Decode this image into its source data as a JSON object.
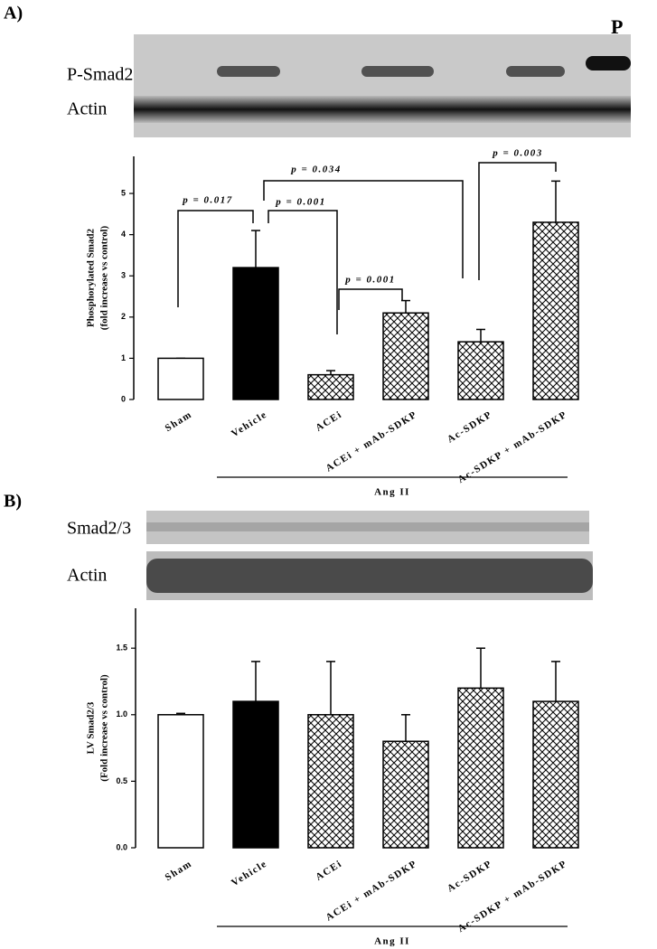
{
  "chart_data": [
    {
      "type": "bar",
      "panel": "A)",
      "blot_labels": [
        "P-Smad2",
        "Actin"
      ],
      "corner_label": "P",
      "ylabel": [
        "Phosphorylated Smad2",
        "(fold increase vs control)"
      ],
      "categories": [
        "Sham",
        "Vehicle",
        "ACEi",
        "ACEi + mAb-SDKP",
        "Ac-SDKP",
        "Ac-SDKP + mAb-SDKP"
      ],
      "values": [
        1,
        3.2,
        0.6,
        2.1,
        1.4,
        4.3
      ],
      "errors": [
        0,
        0.9,
        0.1,
        0.3,
        0.3,
        1.0
      ],
      "colors": [
        "#ffffff",
        "#000000",
        "hatch",
        "hatch",
        "hatch",
        "hatch"
      ],
      "ylim": [
        0,
        5.9
      ],
      "yticks": [
        0,
        1,
        2,
        3,
        4,
        5
      ],
      "group": "Ang II",
      "annotations": [
        "p = 0.017",
        "p = 0.001",
        "p = 0.034",
        "p = 0.001",
        "p = 0.003"
      ]
    },
    {
      "type": "bar",
      "panel": "B)",
      "blot_labels": [
        "Smad2/3",
        "Actin"
      ],
      "ylabel": [
        "LV Smad2/3",
        "(Fold increase vs control)"
      ],
      "categories": [
        "Sham",
        "Vehicle",
        "ACEi",
        "ACEi + mAb-SDKP",
        "Ac-SDKP",
        "Ac-SDKP + mAb-SDKP"
      ],
      "values": [
        1.0,
        1.1,
        1.0,
        0.8,
        1.2,
        1.1
      ],
      "errors": [
        0.01,
        0.3,
        0.4,
        0.2,
        0.3,
        0.3
      ],
      "colors": [
        "#ffffff",
        "#000000",
        "hatch",
        "hatch",
        "hatch",
        "hatch"
      ],
      "ylim": [
        0,
        1.8
      ],
      "yticks": [
        {
          "value": 0,
          "label": "0.0"
        },
        {
          "value": 0.5,
          "label": "0.5"
        },
        {
          "value": 1,
          "label": "1.0"
        },
        {
          "value": 1.5,
          "label": "1.5"
        }
      ],
      "group": "Ang II"
    }
  ]
}
